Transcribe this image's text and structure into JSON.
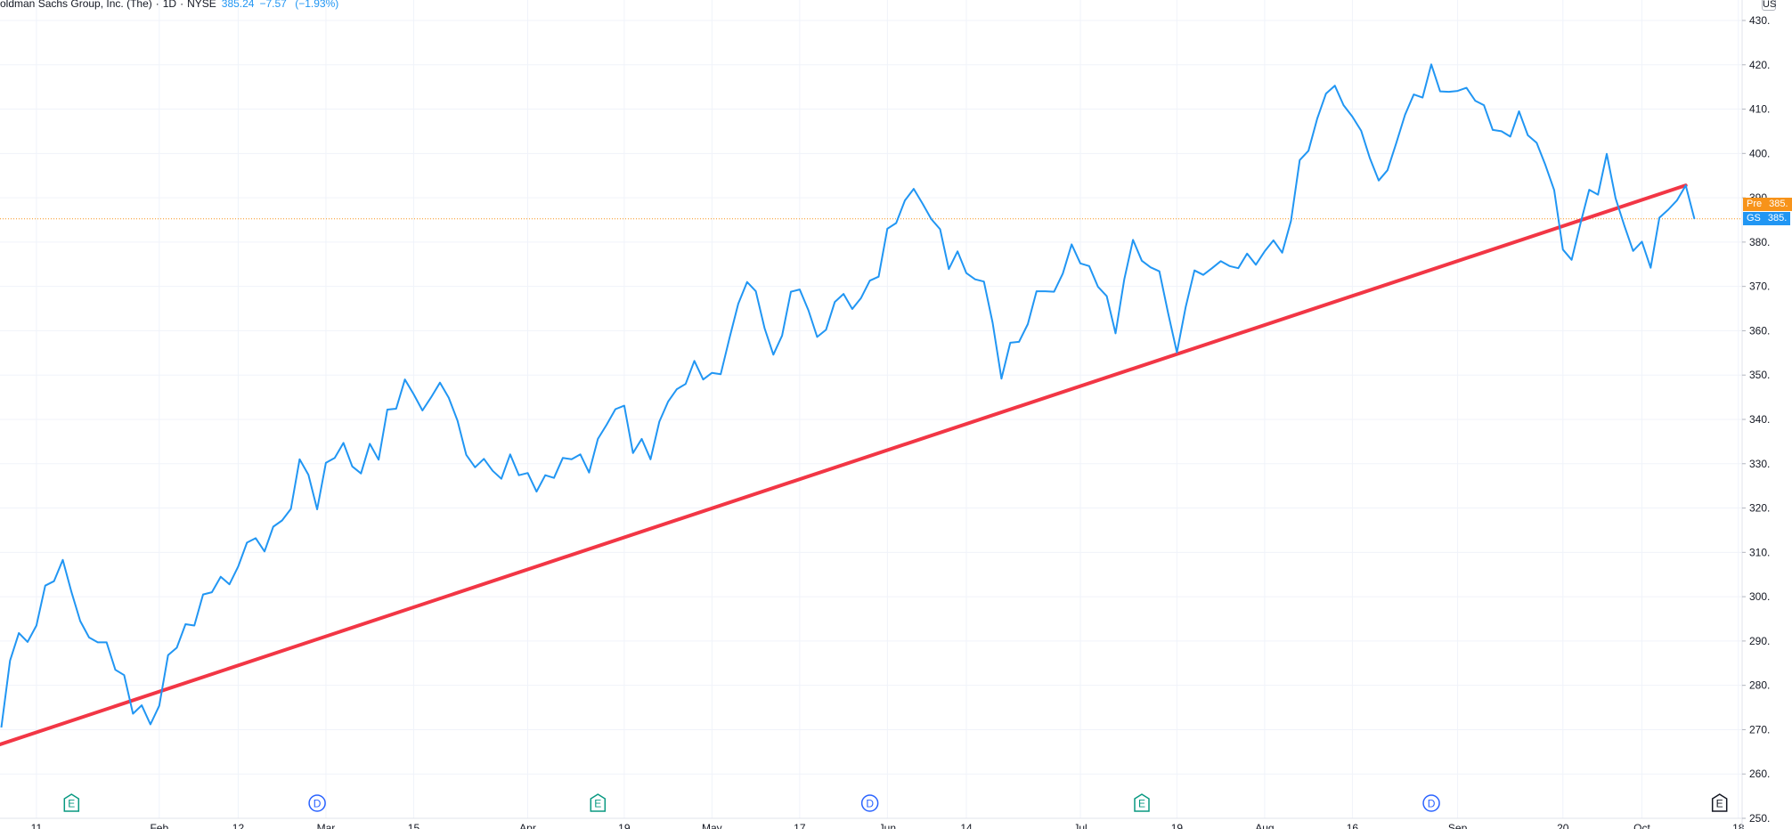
{
  "legend": {
    "title": "oldman Sachs Group, Inc. (The)",
    "interval": "1D",
    "exchange": "NYSE",
    "last": "385.24",
    "change": "−7.57",
    "change_pct": "(−1.93%)"
  },
  "corner_button": "US",
  "tags": {
    "pre": {
      "label": "Pre",
      "price": "385.",
      "color": "#f7931a"
    },
    "gs": {
      "label": "GS",
      "price": "385.",
      "color": "#2196f3"
    }
  },
  "colors": {
    "series": "#2196f3",
    "trendline": "#f23645",
    "last_price_line": "#f7931a",
    "grid": "#f0f3fa"
  },
  "chart_data": {
    "type": "line",
    "ylim": [
      250,
      431
    ],
    "y_ticks": [
      "430.",
      "420.",
      "410.",
      "400.",
      "390.",
      "380.",
      "370.",
      "360.",
      "350.",
      "340.",
      "330.",
      "320.",
      "310.",
      "300.",
      "290.",
      "280.",
      "270.",
      "260.",
      "250."
    ],
    "y_tick_values": [
      430,
      420,
      410,
      400,
      390,
      380,
      370,
      360,
      350,
      340,
      330,
      320,
      310,
      300,
      290,
      280,
      270,
      260,
      250
    ],
    "x_ticks": [
      {
        "label": "11",
        "date": "2021-01-11"
      },
      {
        "label": "Feb",
        "date": "2021-02-01"
      },
      {
        "label": "12",
        "date": "2021-02-12"
      },
      {
        "label": "Mar",
        "date": "2021-03-01"
      },
      {
        "label": "15",
        "date": "2021-03-15"
      },
      {
        "label": "Apr",
        "date": "2021-04-01"
      },
      {
        "label": "19",
        "date": "2021-04-19"
      },
      {
        "label": "May",
        "date": "2021-05-03"
      },
      {
        "label": "17",
        "date": "2021-05-17"
      },
      {
        "label": "Jun",
        "date": "2021-06-01"
      },
      {
        "label": "14",
        "date": "2021-06-14"
      },
      {
        "label": "Jul",
        "date": "2021-07-01"
      },
      {
        "label": "19",
        "date": "2021-07-19"
      },
      {
        "label": "Aug",
        "date": "2021-08-02"
      },
      {
        "label": "16",
        "date": "2021-08-16"
      },
      {
        "label": "Sep",
        "date": "2021-09-01"
      },
      {
        "label": "20",
        "date": "2021-09-20"
      },
      {
        "label": "Oct",
        "date": "2021-10-01"
      },
      {
        "label": "18",
        "date": "2021-10-18"
      }
    ],
    "series": [
      {
        "values": [
          [
            "2021-01-05",
            270.5
          ],
          [
            "2021-01-06",
            285.6
          ],
          [
            "2021-01-07",
            291.8
          ],
          [
            "2021-01-08",
            289.8
          ],
          [
            "2021-01-11",
            293.5
          ],
          [
            "2021-01-12",
            302.5
          ],
          [
            "2021-01-13",
            303.5
          ],
          [
            "2021-01-14",
            308.3
          ],
          [
            "2021-01-15",
            301.0
          ],
          [
            "2021-01-19",
            294.5
          ],
          [
            "2021-01-20",
            290.8
          ],
          [
            "2021-01-21",
            289.7
          ],
          [
            "2021-01-22",
            289.7
          ],
          [
            "2021-01-25",
            283.5
          ],
          [
            "2021-01-26",
            282.3
          ],
          [
            "2021-01-27",
            273.6
          ],
          [
            "2021-01-28",
            275.5
          ],
          [
            "2021-01-29",
            271.2
          ],
          [
            "2021-02-01",
            275.4
          ],
          [
            "2021-02-02",
            286.8
          ],
          [
            "2021-02-03",
            288.5
          ],
          [
            "2021-02-04",
            293.8
          ],
          [
            "2021-02-05",
            293.5
          ],
          [
            "2021-02-08",
            300.5
          ],
          [
            "2021-02-09",
            301.0
          ],
          [
            "2021-02-10",
            304.5
          ],
          [
            "2021-02-11",
            302.8
          ],
          [
            "2021-02-12",
            306.8
          ],
          [
            "2021-02-16",
            312.2
          ],
          [
            "2021-02-17",
            313.2
          ],
          [
            "2021-02-18",
            310.2
          ],
          [
            "2021-02-19",
            315.8
          ],
          [
            "2021-02-22",
            317.2
          ],
          [
            "2021-02-23",
            319.8
          ],
          [
            "2021-02-24",
            331.0
          ],
          [
            "2021-02-25",
            327.5
          ],
          [
            "2021-02-26",
            319.7
          ],
          [
            "2021-03-01",
            330.2
          ],
          [
            "2021-03-02",
            331.3
          ],
          [
            "2021-03-03",
            334.7
          ],
          [
            "2021-03-04",
            329.4
          ],
          [
            "2021-03-05",
            327.8
          ],
          [
            "2021-03-08",
            334.5
          ],
          [
            "2021-03-09",
            330.9
          ],
          [
            "2021-03-10",
            342.2
          ],
          [
            "2021-03-11",
            342.4
          ],
          [
            "2021-03-12",
            349.0
          ],
          [
            "2021-03-15",
            345.7
          ],
          [
            "2021-03-16",
            342.0
          ],
          [
            "2021-03-17",
            345.0
          ],
          [
            "2021-03-18",
            348.3
          ],
          [
            "2021-03-19",
            344.9
          ],
          [
            "2021-03-22",
            339.7
          ],
          [
            "2021-03-23",
            332.0
          ],
          [
            "2021-03-24",
            329.2
          ],
          [
            "2021-03-25",
            331.1
          ],
          [
            "2021-03-26",
            328.4
          ],
          [
            "2021-03-29",
            326.6
          ],
          [
            "2021-03-30",
            332.1
          ],
          [
            "2021-03-31",
            327.4
          ],
          [
            "2021-04-01",
            327.9
          ],
          [
            "2021-04-05",
            323.7
          ],
          [
            "2021-04-06",
            327.4
          ],
          [
            "2021-04-07",
            326.8
          ],
          [
            "2021-04-08",
            331.3
          ],
          [
            "2021-04-09",
            331.0
          ],
          [
            "2021-04-12",
            332.1
          ],
          [
            "2021-04-13",
            328.0
          ],
          [
            "2021-04-14",
            335.6
          ],
          [
            "2021-04-15",
            338.8
          ],
          [
            "2021-04-16",
            342.3
          ],
          [
            "2021-04-19",
            343.1
          ],
          [
            "2021-04-20",
            332.4
          ],
          [
            "2021-04-21",
            335.6
          ],
          [
            "2021-04-22",
            331.0
          ],
          [
            "2021-04-23",
            339.5
          ],
          [
            "2021-04-26",
            344.0
          ],
          [
            "2021-04-27",
            346.8
          ],
          [
            "2021-04-28",
            348.0
          ],
          [
            "2021-04-29",
            353.2
          ],
          [
            "2021-04-30",
            349.0
          ],
          [
            "2021-05-03",
            350.5
          ],
          [
            "2021-05-04",
            350.2
          ],
          [
            "2021-05-05",
            358.3
          ],
          [
            "2021-05-06",
            366.1
          ],
          [
            "2021-05-07",
            371.0
          ],
          [
            "2021-05-10",
            368.9
          ],
          [
            "2021-05-11",
            360.6
          ],
          [
            "2021-05-12",
            354.6
          ],
          [
            "2021-05-13",
            358.9
          ],
          [
            "2021-05-14",
            368.8
          ],
          [
            "2021-05-17",
            369.3
          ],
          [
            "2021-05-18",
            364.6
          ],
          [
            "2021-05-19",
            358.6
          ],
          [
            "2021-05-20",
            360.2
          ],
          [
            "2021-05-21",
            366.5
          ],
          [
            "2021-05-24",
            368.3
          ],
          [
            "2021-05-25",
            364.9
          ],
          [
            "2021-05-26",
            367.4
          ],
          [
            "2021-05-27",
            371.3
          ],
          [
            "2021-05-28",
            372.2
          ],
          [
            "2021-06-01",
            383.0
          ],
          [
            "2021-06-02",
            384.3
          ],
          [
            "2021-06-03",
            389.4
          ],
          [
            "2021-06-04",
            392.0
          ],
          [
            "2021-06-07",
            388.7
          ],
          [
            "2021-06-08",
            385.2
          ],
          [
            "2021-06-09",
            382.9
          ],
          [
            "2021-06-10",
            373.9
          ],
          [
            "2021-06-11",
            377.9
          ],
          [
            "2021-06-14",
            373.0
          ],
          [
            "2021-06-15",
            371.6
          ],
          [
            "2021-06-16",
            371.1
          ],
          [
            "2021-06-17",
            361.8
          ],
          [
            "2021-06-18",
            349.2
          ],
          [
            "2021-06-21",
            357.3
          ],
          [
            "2021-06-22",
            357.5
          ],
          [
            "2021-06-23",
            361.5
          ],
          [
            "2021-06-24",
            368.9
          ],
          [
            "2021-06-25",
            368.9
          ],
          [
            "2021-06-28",
            368.8
          ],
          [
            "2021-06-29",
            372.9
          ],
          [
            "2021-06-30",
            379.5
          ],
          [
            "2021-07-01",
            375.2
          ],
          [
            "2021-07-02",
            374.6
          ],
          [
            "2021-07-06",
            369.9
          ],
          [
            "2021-07-07",
            367.8
          ],
          [
            "2021-07-08",
            359.4
          ],
          [
            "2021-07-09",
            371.6
          ],
          [
            "2021-07-12",
            380.5
          ],
          [
            "2021-07-13",
            375.8
          ],
          [
            "2021-07-14",
            374.3
          ],
          [
            "2021-07-15",
            373.4
          ],
          [
            "2021-07-16",
            364.0
          ],
          [
            "2021-07-19",
            355.1
          ],
          [
            "2021-07-20",
            365.4
          ],
          [
            "2021-07-21",
            373.6
          ],
          [
            "2021-07-22",
            372.6
          ],
          [
            "2021-07-23",
            374.1
          ],
          [
            "2021-07-26",
            375.7
          ],
          [
            "2021-07-27",
            374.6
          ],
          [
            "2021-07-28",
            374.1
          ],
          [
            "2021-07-29",
            377.4
          ],
          [
            "2021-07-30",
            374.9
          ],
          [
            "2021-08-02",
            377.9
          ],
          [
            "2021-08-03",
            380.4
          ],
          [
            "2021-08-04",
            377.6
          ],
          [
            "2021-08-05",
            384.8
          ],
          [
            "2021-08-06",
            398.5
          ],
          [
            "2021-08-09",
            400.6
          ],
          [
            "2021-08-10",
            407.9
          ],
          [
            "2021-08-11",
            413.5
          ],
          [
            "2021-08-12",
            415.3
          ],
          [
            "2021-08-13",
            410.9
          ],
          [
            "2021-08-16",
            408.3
          ],
          [
            "2021-08-17",
            405.1
          ],
          [
            "2021-08-18",
            398.9
          ],
          [
            "2021-08-19",
            393.9
          ],
          [
            "2021-08-20",
            396.2
          ],
          [
            "2021-08-23",
            402.3
          ],
          [
            "2021-08-24",
            408.7
          ],
          [
            "2021-08-25",
            413.3
          ],
          [
            "2021-08-26",
            412.6
          ],
          [
            "2021-08-27",
            420.1
          ],
          [
            "2021-08-30",
            414.0
          ],
          [
            "2021-08-31",
            413.9
          ],
          [
            "2021-09-01",
            414.1
          ],
          [
            "2021-09-02",
            414.8
          ],
          [
            "2021-09-03",
            411.9
          ],
          [
            "2021-09-07",
            410.9
          ],
          [
            "2021-09-08",
            405.3
          ],
          [
            "2021-09-09",
            405.0
          ],
          [
            "2021-09-10",
            403.8
          ],
          [
            "2021-09-13",
            409.5
          ],
          [
            "2021-09-14",
            404.1
          ],
          [
            "2021-09-15",
            402.4
          ],
          [
            "2021-09-16",
            397.4
          ],
          [
            "2021-09-17",
            391.7
          ],
          [
            "2021-09-20",
            378.3
          ],
          [
            "2021-09-21",
            376.0
          ],
          [
            "2021-09-22",
            384.2
          ],
          [
            "2021-09-23",
            391.8
          ],
          [
            "2021-09-24",
            390.7
          ],
          [
            "2021-09-27",
            399.9
          ],
          [
            "2021-09-28",
            389.9
          ],
          [
            "2021-09-29",
            383.7
          ],
          [
            "2021-09-30",
            378.0
          ],
          [
            "2021-10-01",
            380.1
          ],
          [
            "2021-10-04",
            374.2
          ],
          [
            "2021-10-05",
            385.5
          ],
          [
            "2021-10-06",
            387.3
          ],
          [
            "2021-10-07",
            389.4
          ],
          [
            "2021-10-08",
            392.8
          ],
          [
            "2021-10-11",
            385.2
          ]
        ]
      }
    ],
    "trendline": [
      [
        "2021-01-04",
        266.3
      ],
      [
        "2021-10-08",
        392.8
      ]
    ],
    "last_price": 385.24,
    "events": [
      {
        "kind": "E",
        "date": "2021-01-15",
        "color": "#089981"
      },
      {
        "kind": "D",
        "date": "2021-02-26",
        "color": "#2962ff"
      },
      {
        "kind": "E",
        "date": "2021-04-14",
        "color": "#089981"
      },
      {
        "kind": "D",
        "date": "2021-05-27",
        "color": "#2962ff"
      },
      {
        "kind": "E",
        "date": "2021-07-13",
        "color": "#089981"
      },
      {
        "kind": "D",
        "date": "2021-08-27",
        "color": "#2962ff"
      },
      {
        "kind": "E",
        "date": "2021-10-15",
        "color": "#131722"
      }
    ]
  }
}
